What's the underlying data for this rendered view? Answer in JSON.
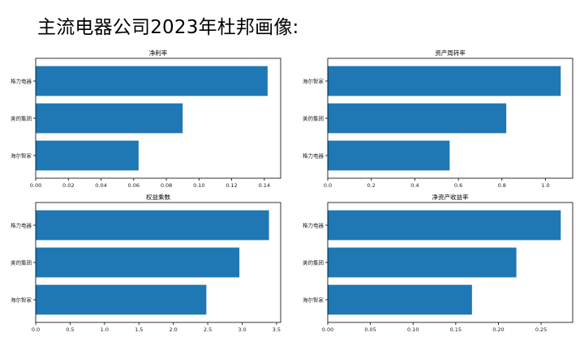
{
  "title": "主流电器公司2023年杜邦画像:",
  "colors": {
    "bar": "#1f77b4",
    "axis": "#000000",
    "text": "#222222"
  },
  "chart_data": [
    {
      "type": "bar",
      "orientation": "horizontal",
      "title": "净利率",
      "categories": [
        "格力电器",
        "美的集团",
        "海尔智家"
      ],
      "values": [
        0.142,
        0.09,
        0.063
      ],
      "xlim": [
        0,
        0.15
      ],
      "xticks": [
        "0.00",
        "0.02",
        "0.04",
        "0.06",
        "0.08",
        "0.10",
        "0.12",
        "0.14"
      ],
      "xtick_values": [
        0,
        0.02,
        0.04,
        0.06,
        0.08,
        0.1,
        0.12,
        0.14
      ],
      "grid": false
    },
    {
      "type": "bar",
      "orientation": "horizontal",
      "title": "资产周转率",
      "categories": [
        "海尔智家",
        "美的集团",
        "格力电器"
      ],
      "values": [
        1.07,
        0.82,
        0.56
      ],
      "xlim": [
        0,
        1.125
      ],
      "xticks": [
        "0.0",
        "0.2",
        "0.4",
        "0.6",
        "0.8",
        "1.0"
      ],
      "xtick_values": [
        0,
        0.2,
        0.4,
        0.6,
        0.8,
        1.0
      ],
      "grid": false
    },
    {
      "type": "bar",
      "orientation": "horizontal",
      "title": "权益乘数",
      "categories": [
        "格力电器",
        "美的集团",
        "海尔智家"
      ],
      "values": [
        3.39,
        2.96,
        2.48
      ],
      "xlim": [
        0,
        3.56
      ],
      "xticks": [
        "0.0",
        "0.5",
        "1.0",
        "1.5",
        "2.0",
        "2.5",
        "3.0",
        "3.5"
      ],
      "xtick_values": [
        0,
        0.5,
        1.0,
        1.5,
        2.0,
        2.5,
        3.0,
        3.5
      ],
      "grid": false
    },
    {
      "type": "bar",
      "orientation": "horizontal",
      "title": "净资产收益率",
      "categories": [
        "格力电器",
        "美的集团",
        "海尔智家"
      ],
      "values": [
        0.273,
        0.221,
        0.169
      ],
      "xlim": [
        0,
        0.287
      ],
      "xticks": [
        "0.00",
        "0.05",
        "0.10",
        "0.15",
        "0.20",
        "0.25"
      ],
      "xtick_values": [
        0,
        0.05,
        0.1,
        0.15,
        0.2,
        0.25
      ],
      "grid": false
    }
  ]
}
